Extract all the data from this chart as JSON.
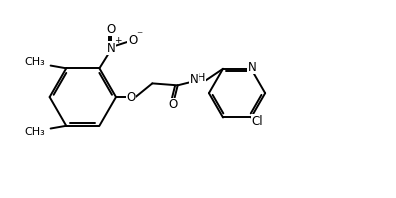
{
  "background": "#ffffff",
  "line_color": "#000000",
  "line_width": 1.4,
  "font_size": 8.5,
  "figsize": [
    3.96,
    1.98
  ],
  "dpi": 100,
  "xlim": [
    0,
    10
  ],
  "ylim": [
    0,
    5
  ]
}
